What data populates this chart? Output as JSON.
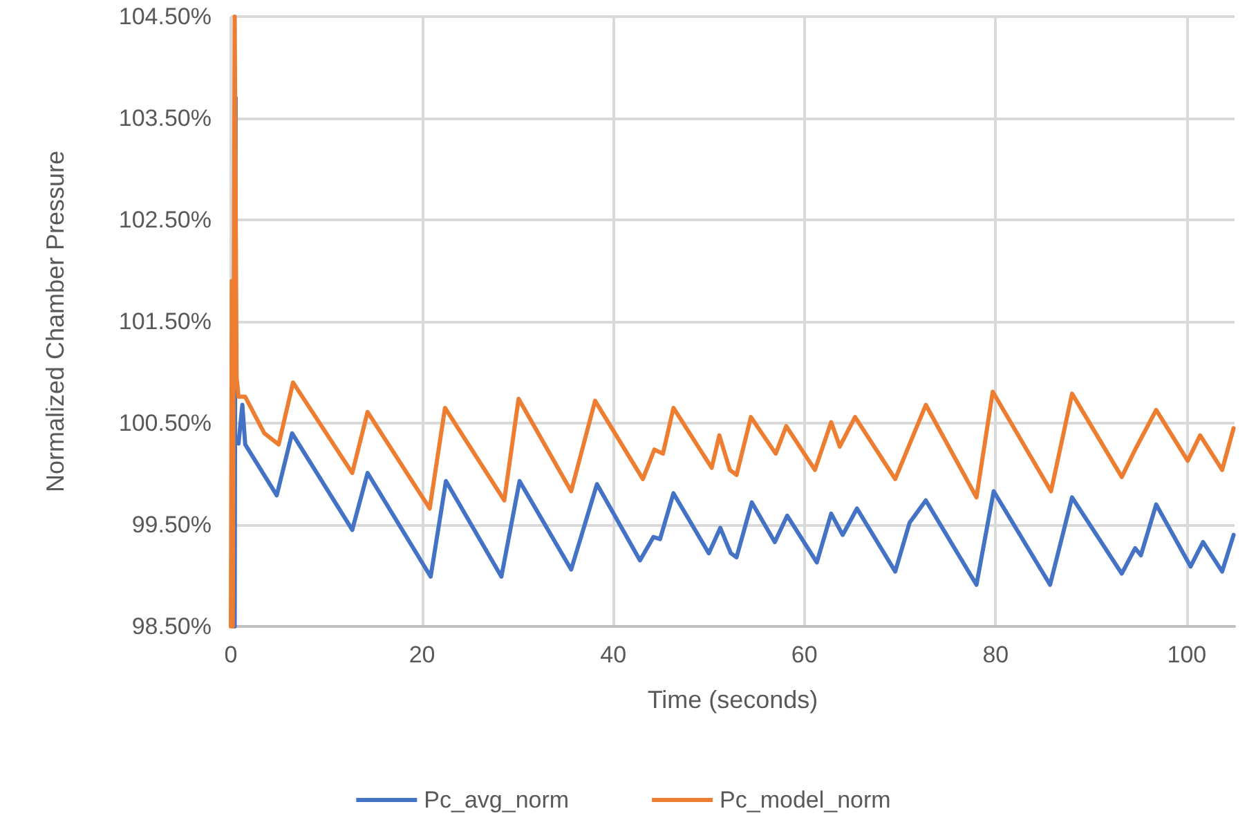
{
  "chart_data": {
    "type": "line",
    "xlabel": "Time (seconds)",
    "ylabel": "Normalized Chamber Pressure",
    "xlim": [
      0,
      105
    ],
    "xticks": [
      0,
      20,
      40,
      60,
      80,
      100
    ],
    "ylim": [
      98.5,
      104.5
    ],
    "yticks": [
      {
        "value": 98.5,
        "label": "98.50%"
      },
      {
        "value": 99.5,
        "label": "99.50%"
      },
      {
        "value": 100.5,
        "label": "100.50%"
      },
      {
        "value": 101.5,
        "label": "101.50%"
      },
      {
        "value": 102.5,
        "label": "102.50%"
      },
      {
        "value": 103.5,
        "label": "103.50%"
      },
      {
        "value": 104.5,
        "label": "104.50%"
      }
    ],
    "grid": true,
    "legend": "bottom",
    "marker": "none",
    "line_style": "solid",
    "series": [
      {
        "name": "Pc_avg_norm",
        "color": "#4472c4",
        "x": [
          0.4,
          0.5,
          0.6,
          0.8,
          1.2,
          1.5,
          4.8,
          6.4,
          12.7,
          14.3,
          20.9,
          22.5,
          28.3,
          30.2,
          35.6,
          38.3,
          42.8,
          44.2,
          44.9,
          46.3,
          50.0,
          51.2,
          52.3,
          52.9,
          54.5,
          56.9,
          58.2,
          61.3,
          62.8,
          64.0,
          65.5,
          69.5,
          71.0,
          72.7,
          78.0,
          79.8,
          85.7,
          88.0,
          93.2,
          94.6,
          95.2,
          96.8,
          100.4,
          101.7,
          103.7,
          104.9
        ],
        "values": [
          98.5,
          103.7,
          null,
          100.3,
          100.68,
          100.29,
          99.79,
          100.4,
          99.45,
          100.01,
          98.99,
          99.93,
          98.99,
          99.93,
          99.06,
          99.9,
          99.15,
          99.38,
          99.36,
          99.81,
          99.22,
          99.47,
          99.22,
          99.18,
          99.72,
          99.33,
          99.59,
          99.13,
          99.61,
          99.4,
          99.66,
          99.04,
          99.52,
          99.74,
          98.91,
          99.83,
          98.91,
          99.77,
          99.02,
          99.27,
          99.2,
          99.7,
          99.09,
          99.33,
          99.04,
          99.4
        ]
      },
      {
        "name": "Pc_model_norm",
        "color": "#ed7d31",
        "x": [
          0,
          0.1,
          0.2,
          0.4,
          0.6,
          0.8,
          1.5,
          3.5,
          5.0,
          6.5,
          12.7,
          14.3,
          20.8,
          22.4,
          28.6,
          30.1,
          35.6,
          38.1,
          43.1,
          44.3,
          45.2,
          46.3,
          50.3,
          51.1,
          52.2,
          52.9,
          54.4,
          57.0,
          58.1,
          61.1,
          62.8,
          63.7,
          65.3,
          69.5,
          72.7,
          78.0,
          79.7,
          85.8,
          88.0,
          93.2,
          94.6,
          96.8,
          100.1,
          101.4,
          103.7,
          104.9
        ],
        "values": [
          98.5,
          101.9,
          98.5,
          104.5,
          100.95,
          100.76,
          100.76,
          100.4,
          100.29,
          100.9,
          100.01,
          100.61,
          99.66,
          100.65,
          99.74,
          100.74,
          99.83,
          100.72,
          99.95,
          100.24,
          100.2,
          100.65,
          100.06,
          100.38,
          100.04,
          99.99,
          100.56,
          100.2,
          100.47,
          100.04,
          100.51,
          100.27,
          100.56,
          99.95,
          100.68,
          99.77,
          100.81,
          99.83,
          100.79,
          99.97,
          100.24,
          100.63,
          100.13,
          100.38,
          100.04,
          100.45
        ]
      }
    ]
  }
}
